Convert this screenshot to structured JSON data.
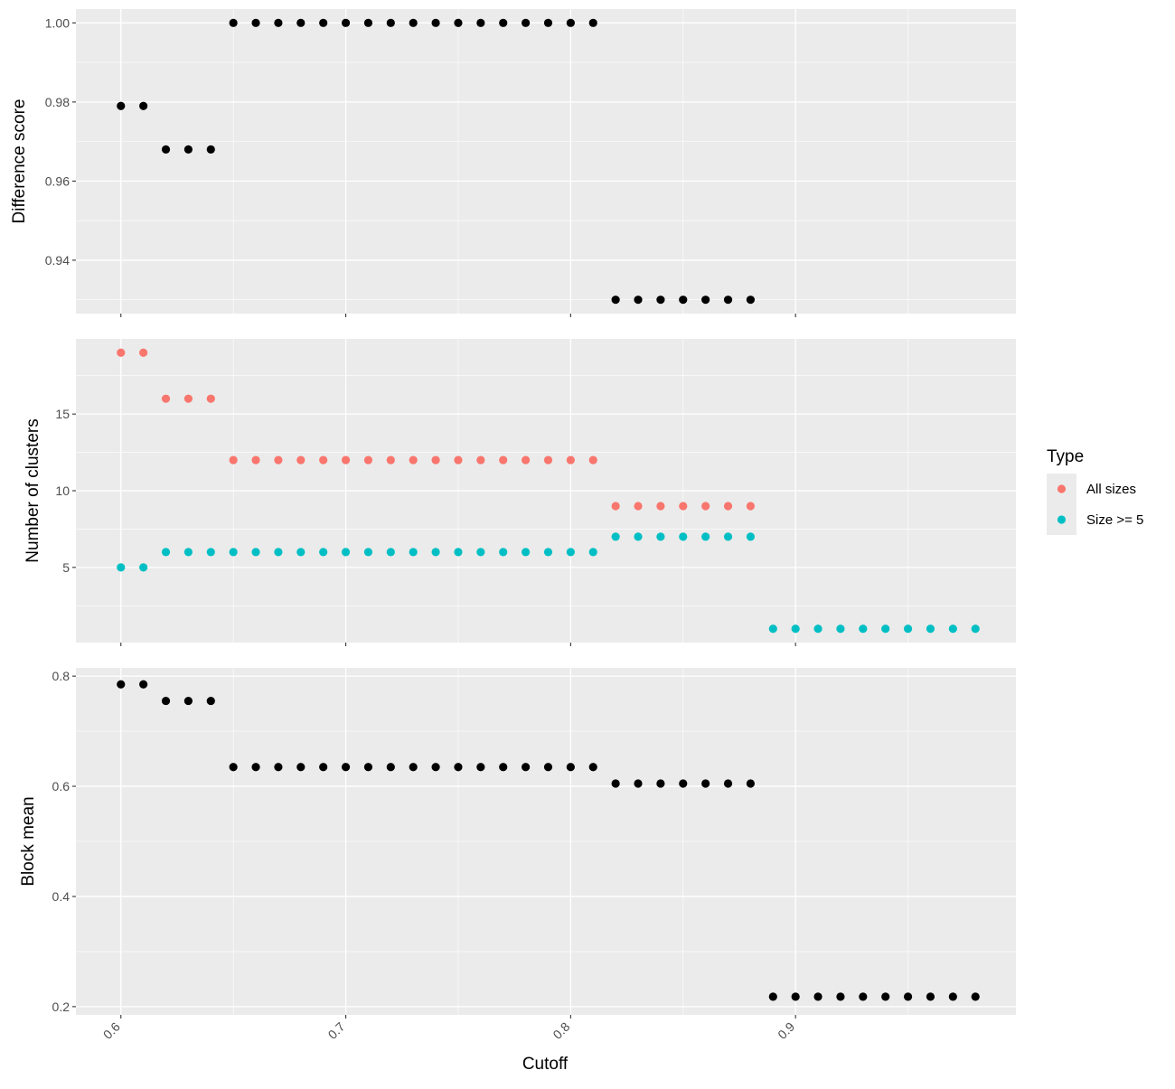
{
  "chart_data": {
    "type": "scatter",
    "xlabel": "Cutoff",
    "x_ticks": [
      "0.6",
      "0.7",
      "0.8",
      "0.9"
    ],
    "xlim": [
      0.58,
      0.998
    ],
    "grid": true,
    "legend": {
      "title": "Type",
      "position": "right",
      "entries": [
        {
          "label": "All sizes",
          "color": "#F8766D"
        },
        {
          "label": "Size >= 5",
          "color": "#00BFC4"
        }
      ]
    },
    "panels": [
      {
        "ylabel": "Difference score",
        "y_ticks": [
          "0.94",
          "0.96",
          "0.98",
          "1.00"
        ],
        "ylim": [
          0.9265,
          1.0035
        ],
        "series": [
          {
            "color": "#000000",
            "x": [
              0.6,
              0.61,
              0.62,
              0.63,
              0.64,
              0.65,
              0.66,
              0.67,
              0.68,
              0.69,
              0.7,
              0.71,
              0.72,
              0.73,
              0.74,
              0.75,
              0.76,
              0.77,
              0.78,
              0.79,
              0.8,
              0.81,
              0.82,
              0.83,
              0.84,
              0.85,
              0.86,
              0.87,
              0.88
            ],
            "y": [
              0.979,
              0.979,
              0.968,
              0.968,
              0.968,
              1.0,
              1.0,
              1.0,
              1.0,
              1.0,
              1.0,
              1.0,
              1.0,
              1.0,
              1.0,
              1.0,
              1.0,
              1.0,
              1.0,
              1.0,
              1.0,
              1.0,
              0.93,
              0.93,
              0.93,
              0.93,
              0.93,
              0.93,
              0.93
            ]
          }
        ]
      },
      {
        "ylabel": "Number of clusters",
        "y_ticks": [
          "5",
          "10",
          "15"
        ],
        "ylim": [
          0.1,
          19.9
        ],
        "series": [
          {
            "name": "All sizes",
            "color": "#F8766D",
            "x": [
              0.6,
              0.61,
              0.62,
              0.63,
              0.64,
              0.65,
              0.66,
              0.67,
              0.68,
              0.69,
              0.7,
              0.71,
              0.72,
              0.73,
              0.74,
              0.75,
              0.76,
              0.77,
              0.78,
              0.79,
              0.8,
              0.81,
              0.82,
              0.83,
              0.84,
              0.85,
              0.86,
              0.87,
              0.88
            ],
            "y": [
              19,
              19,
              16,
              16,
              16,
              12,
              12,
              12,
              12,
              12,
              12,
              12,
              12,
              12,
              12,
              12,
              12,
              12,
              12,
              12,
              12,
              12,
              9,
              9,
              9,
              9,
              9,
              9,
              9
            ]
          },
          {
            "name": "Size >= 5",
            "color": "#00BFC4",
            "x": [
              0.6,
              0.61,
              0.62,
              0.63,
              0.64,
              0.65,
              0.66,
              0.67,
              0.68,
              0.69,
              0.7,
              0.71,
              0.72,
              0.73,
              0.74,
              0.75,
              0.76,
              0.77,
              0.78,
              0.79,
              0.8,
              0.81,
              0.82,
              0.83,
              0.84,
              0.85,
              0.86,
              0.87,
              0.88,
              0.89,
              0.9,
              0.91,
              0.92,
              0.93,
              0.94,
              0.95,
              0.96,
              0.97,
              0.98
            ],
            "y": [
              5,
              5,
              6,
              6,
              6,
              6,
              6,
              6,
              6,
              6,
              6,
              6,
              6,
              6,
              6,
              6,
              6,
              6,
              6,
              6,
              6,
              6,
              7,
              7,
              7,
              7,
              7,
              7,
              7,
              1,
              1,
              1,
              1,
              1,
              1,
              1,
              1,
              1,
              1
            ]
          }
        ]
      },
      {
        "ylabel": "Block mean",
        "y_ticks": [
          "0.2",
          "0.4",
          "0.6",
          "0.8"
        ],
        "ylim": [
          0.185,
          0.815
        ],
        "series": [
          {
            "color": "#000000",
            "x": [
              0.6,
              0.61,
              0.62,
              0.63,
              0.64,
              0.65,
              0.66,
              0.67,
              0.68,
              0.69,
              0.7,
              0.71,
              0.72,
              0.73,
              0.74,
              0.75,
              0.76,
              0.77,
              0.78,
              0.79,
              0.8,
              0.81,
              0.82,
              0.83,
              0.84,
              0.85,
              0.86,
              0.87,
              0.88,
              0.89,
              0.9,
              0.91,
              0.92,
              0.93,
              0.94,
              0.95,
              0.96,
              0.97,
              0.98
            ],
            "y": [
              0.785,
              0.785,
              0.755,
              0.755,
              0.755,
              0.635,
              0.635,
              0.635,
              0.635,
              0.635,
              0.635,
              0.635,
              0.635,
              0.635,
              0.635,
              0.635,
              0.635,
              0.635,
              0.635,
              0.635,
              0.635,
              0.635,
              0.605,
              0.605,
              0.605,
              0.605,
              0.605,
              0.605,
              0.605,
              0.218,
              0.218,
              0.218,
              0.218,
              0.218,
              0.218,
              0.218,
              0.218,
              0.218,
              0.218
            ]
          }
        ]
      }
    ]
  }
}
